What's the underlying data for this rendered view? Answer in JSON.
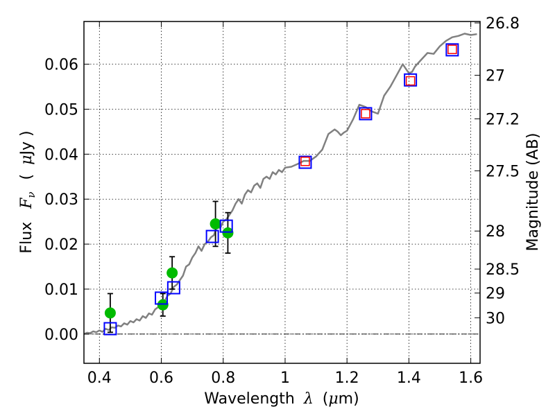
{
  "chart_data": {
    "type": "scatter",
    "x_axis": {
      "label_prefix": "Wavelength",
      "label_symbol": "λ",
      "label_unit_open": "(",
      "label_unit_mu": "μ",
      "label_unit_rest": "m)",
      "xlim": [
        0.35,
        1.63
      ],
      "ticks": [
        0.4,
        0.6,
        0.8,
        1.0,
        1.2,
        1.4,
        1.6
      ],
      "tick_labels": [
        "0.4",
        "0.6",
        "0.8",
        "1",
        "1.2",
        "1.4",
        "1.6"
      ]
    },
    "y_axis": {
      "label_prefix": "Flux",
      "label_symbol": "F",
      "label_sub": "ν",
      "label_unit_open": "(",
      "label_unit_mu": "μ",
      "label_unit_rest": "Jy )",
      "ylim": [
        -0.0065,
        0.0695
      ],
      "ticks": [
        0.0,
        0.01,
        0.02,
        0.03,
        0.04,
        0.05,
        0.06
      ],
      "tick_labels": [
        "0.00",
        "0.01",
        "0.02",
        "0.03",
        "0.04",
        "0.05",
        "0.06"
      ]
    },
    "y2_axis": {
      "label": "Magnitude (AB)",
      "ticks": [
        26.8,
        27,
        27.2,
        27.5,
        28,
        28.5,
        29,
        30
      ],
      "tick_labels": [
        "26.8",
        "27",
        "27.2",
        "27.5",
        "28",
        "28.5",
        "29",
        "30"
      ]
    },
    "grid": true,
    "zero_line": "dash-dot",
    "series": [
      {
        "kind": "line",
        "color": "#808080",
        "x": [
          0.35,
          0.36,
          0.37,
          0.38,
          0.39,
          0.4,
          0.41,
          0.42,
          0.43,
          0.44,
          0.45,
          0.46,
          0.47,
          0.48,
          0.49,
          0.5,
          0.51,
          0.52,
          0.53,
          0.54,
          0.55,
          0.56,
          0.57,
          0.58,
          0.59,
          0.6,
          0.61,
          0.62,
          0.63,
          0.64,
          0.65,
          0.66,
          0.67,
          0.68,
          0.69,
          0.7,
          0.71,
          0.72,
          0.73,
          0.74,
          0.75,
          0.76,
          0.77,
          0.78,
          0.79,
          0.8,
          0.81,
          0.82,
          0.83,
          0.84,
          0.85,
          0.86,
          0.87,
          0.88,
          0.89,
          0.9,
          0.91,
          0.92,
          0.93,
          0.94,
          0.95,
          0.96,
          0.97,
          0.98,
          0.99,
          1.0,
          1.02,
          1.04,
          1.06,
          1.08,
          1.1,
          1.12,
          1.14,
          1.16,
          1.17,
          1.18,
          1.19,
          1.2,
          1.22,
          1.24,
          1.26,
          1.28,
          1.3,
          1.32,
          1.34,
          1.36,
          1.38,
          1.39,
          1.4,
          1.41,
          1.42,
          1.44,
          1.46,
          1.48,
          1.5,
          1.52,
          1.54,
          1.56,
          1.58,
          1.6,
          1.62
        ],
        "y": [
          0.0,
          0.0003,
          0.0002,
          0.0006,
          0.0004,
          0.0008,
          0.0005,
          0.0012,
          0.0009,
          0.0015,
          0.0014,
          0.0019,
          0.0017,
          0.0024,
          0.0021,
          0.0029,
          0.0026,
          0.0033,
          0.003,
          0.004,
          0.0036,
          0.0046,
          0.0043,
          0.0055,
          0.006,
          0.007,
          0.0073,
          0.0085,
          0.009,
          0.0105,
          0.011,
          0.012,
          0.013,
          0.015,
          0.0155,
          0.017,
          0.018,
          0.0195,
          0.0185,
          0.02,
          0.0205,
          0.0215,
          0.022,
          0.024,
          0.0235,
          0.025,
          0.0255,
          0.0265,
          0.0275,
          0.029,
          0.03,
          0.029,
          0.031,
          0.032,
          0.0315,
          0.033,
          0.0335,
          0.0325,
          0.0345,
          0.035,
          0.0345,
          0.036,
          0.0355,
          0.0365,
          0.036,
          0.037,
          0.0372,
          0.0378,
          0.0385,
          0.0385,
          0.0395,
          0.041,
          0.0445,
          0.0455,
          0.045,
          0.0442,
          0.0448,
          0.0452,
          0.0478,
          0.051,
          0.0505,
          0.0495,
          0.049,
          0.053,
          0.055,
          0.0575,
          0.06,
          0.059,
          0.058,
          0.0583,
          0.0595,
          0.061,
          0.0625,
          0.0623,
          0.064,
          0.0652,
          0.066,
          0.0663,
          0.0668,
          0.0665,
          0.0667
        ]
      },
      {
        "kind": "errorbar-points",
        "color": "#00bb00",
        "x": [
          0.435,
          0.605,
          0.635,
          0.775,
          0.815
        ],
        "y": [
          0.0047,
          0.0065,
          0.0136,
          0.0245,
          0.0225
        ],
        "yerr": [
          0.0043,
          0.0025,
          0.0036,
          0.005,
          0.0045
        ]
      },
      {
        "kind": "open-squares",
        "color": "#0000ff",
        "x": [
          0.435,
          0.6,
          0.64,
          0.765,
          0.81,
          1.065,
          1.26,
          1.405,
          1.54
        ],
        "y": [
          0.0012,
          0.008,
          0.0103,
          0.0217,
          0.024,
          0.0382,
          0.049,
          0.0565,
          0.0632
        ]
      },
      {
        "kind": "open-squares-small",
        "color": "#ff0000",
        "x": [
          1.065,
          1.26,
          1.405,
          1.54
        ],
        "y": [
          0.0384,
          0.049,
          0.0563,
          0.0633
        ]
      }
    ]
  }
}
